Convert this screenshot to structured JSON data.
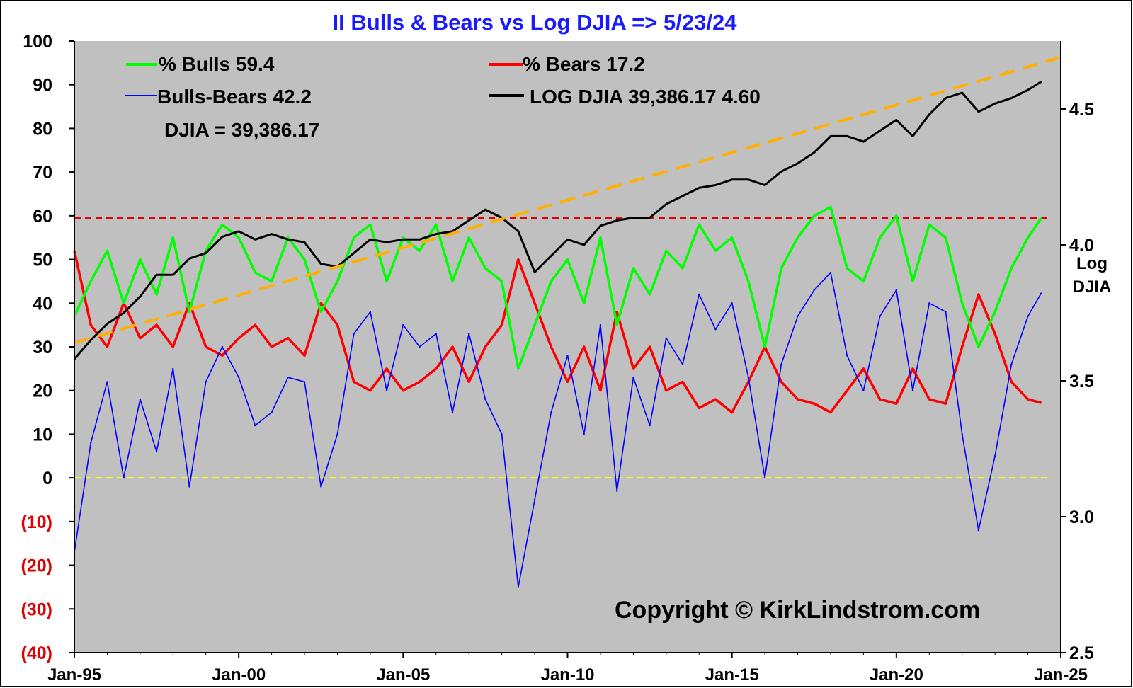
{
  "chart_data": {
    "type": "line",
    "title": "II Bulls & Bears vs Log DJIA =>  5/23/24",
    "colors": {
      "bulls": "#00ff00",
      "bears": "#ff0000",
      "spread": "#0000ff",
      "log_djia": "#000000",
      "trend": "#ffb000",
      "hline_60": "#e00000",
      "hline_0": "#ffff00",
      "plot_bg": "#c0c0c0"
    },
    "y_left": {
      "ylim": [
        -40,
        100
      ],
      "ticks": [
        100,
        90,
        80,
        70,
        60,
        50,
        40,
        30,
        20,
        10,
        0,
        -10,
        -20,
        -30,
        -40
      ],
      "tick_labels": [
        "100",
        "90",
        "80",
        "70",
        "60",
        "50",
        "40",
        "30",
        "20",
        "10",
        "0",
        "(10)",
        "(20)",
        "(30)",
        "(40)"
      ]
    },
    "y_right": {
      "label_line1": "Log",
      "label_line2": "DJIA",
      "ylim": [
        2.5,
        4.75
      ],
      "ticks": [
        4.5,
        4.0,
        3.5,
        3.0,
        2.5
      ],
      "tick_labels": [
        "4.5",
        "4.0",
        "3.5",
        "3.0",
        "2.5"
      ]
    },
    "x_axis": {
      "xlim": [
        1995.0,
        2025.0
      ],
      "ticks": [
        1995,
        2000,
        2005,
        2010,
        2015,
        2020,
        2025
      ],
      "tick_labels": [
        "Jan-95",
        "Jan-00",
        "Jan-05",
        "Jan-10",
        "Jan-15",
        "Jan-20",
        "Jan-25"
      ]
    },
    "legend": {
      "bulls": "%   Bulls 59.4",
      "bears": "% Bears 17.2",
      "spread": "Bulls-Bears 42.2",
      "log_djia": "LOG DJIA  39,386.17  4.60",
      "djia_text": "DJIA =   39,386.17"
    },
    "reference_lines": [
      {
        "name": "bulls 60 line",
        "y": 59.5,
        "style": "dashed"
      },
      {
        "name": "zero line",
        "y": 0,
        "style": "dashed"
      }
    ],
    "trend_line": {
      "x": [
        1995.0,
        2025.0
      ],
      "y_log": [
        3.64,
        4.69
      ]
    },
    "series": [
      {
        "name": "% Bulls",
        "x": [
          1995.0,
          1995.5,
          1996.0,
          1996.5,
          1997.0,
          1997.5,
          1998.0,
          1998.5,
          1999.0,
          1999.5,
          2000.0,
          2000.5,
          2001.0,
          2001.5,
          2002.0,
          2002.5,
          2003.0,
          2003.5,
          2004.0,
          2004.5,
          2005.0,
          2005.5,
          2006.0,
          2006.5,
          2007.0,
          2007.5,
          2008.0,
          2008.5,
          2009.0,
          2009.5,
          2010.0,
          2010.5,
          2011.0,
          2011.5,
          2012.0,
          2012.5,
          2013.0,
          2013.5,
          2014.0,
          2014.5,
          2015.0,
          2015.5,
          2016.0,
          2016.5,
          2017.0,
          2017.5,
          2018.0,
          2018.5,
          2019.0,
          2019.5,
          2020.0,
          2020.5,
          2021.0,
          2021.5,
          2022.0,
          2022.5,
          2023.0,
          2023.5,
          2024.0,
          2024.4
        ],
        "values": [
          37,
          45,
          52,
          40,
          50,
          42,
          55,
          38,
          52,
          58,
          55,
          47,
          45,
          55,
          50,
          38,
          45,
          55,
          58,
          45,
          55,
          52,
          58,
          45,
          55,
          48,
          45,
          25,
          35,
          45,
          50,
          40,
          55,
          35,
          48,
          42,
          52,
          48,
          58,
          52,
          55,
          45,
          30,
          48,
          55,
          60,
          62,
          48,
          45,
          55,
          60,
          45,
          58,
          55,
          40,
          30,
          38,
          48,
          55,
          59.4
        ]
      },
      {
        "name": "% Bears",
        "x": [
          1995.0,
          1995.5,
          1996.0,
          1996.5,
          1997.0,
          1997.5,
          1998.0,
          1998.5,
          1999.0,
          1999.5,
          2000.0,
          2000.5,
          2001.0,
          2001.5,
          2002.0,
          2002.5,
          2003.0,
          2003.5,
          2004.0,
          2004.5,
          2005.0,
          2005.5,
          2006.0,
          2006.5,
          2007.0,
          2007.5,
          2008.0,
          2008.5,
          2009.0,
          2009.5,
          2010.0,
          2010.5,
          2011.0,
          2011.5,
          2012.0,
          2012.5,
          2013.0,
          2013.5,
          2014.0,
          2014.5,
          2015.0,
          2015.5,
          2016.0,
          2016.5,
          2017.0,
          2017.5,
          2018.0,
          2018.5,
          2019.0,
          2019.5,
          2020.0,
          2020.5,
          2021.0,
          2021.5,
          2022.0,
          2022.5,
          2023.0,
          2023.5,
          2024.0,
          2024.4
        ],
        "values": [
          52,
          35,
          30,
          40,
          32,
          35,
          30,
          40,
          30,
          28,
          32,
          35,
          30,
          32,
          28,
          40,
          35,
          22,
          20,
          25,
          20,
          22,
          25,
          30,
          22,
          30,
          35,
          50,
          40,
          30,
          22,
          30,
          20,
          38,
          25,
          30,
          20,
          22,
          16,
          18,
          15,
          22,
          30,
          22,
          18,
          17,
          15,
          20,
          25,
          18,
          17,
          25,
          18,
          17,
          30,
          42,
          33,
          22,
          18,
          17.2
        ]
      },
      {
        "name": "Bulls-Bears",
        "x": [
          1995.0,
          1995.5,
          1996.0,
          1996.5,
          1997.0,
          1997.5,
          1998.0,
          1998.5,
          1999.0,
          1999.5,
          2000.0,
          2000.5,
          2001.0,
          2001.5,
          2002.0,
          2002.5,
          2003.0,
          2003.5,
          2004.0,
          2004.5,
          2005.0,
          2005.5,
          2006.0,
          2006.5,
          2007.0,
          2007.5,
          2008.0,
          2008.5,
          2009.0,
          2009.5,
          2010.0,
          2010.5,
          2011.0,
          2011.5,
          2012.0,
          2012.5,
          2013.0,
          2013.5,
          2014.0,
          2014.5,
          2015.0,
          2015.5,
          2016.0,
          2016.5,
          2017.0,
          2017.5,
          2018.0,
          2018.5,
          2019.0,
          2019.5,
          2020.0,
          2020.5,
          2021.0,
          2021.5,
          2022.0,
          2022.5,
          2023.0,
          2023.5,
          2024.0,
          2024.4
        ],
        "values": [
          -17,
          8,
          22,
          0,
          18,
          6,
          25,
          -2,
          22,
          30,
          23,
          12,
          15,
          23,
          22,
          -2,
          10,
          33,
          38,
          20,
          35,
          30,
          33,
          15,
          33,
          18,
          10,
          -25,
          -5,
          15,
          28,
          10,
          35,
          -3,
          23,
          12,
          32,
          26,
          42,
          34,
          40,
          23,
          0,
          26,
          37,
          43,
          47,
          28,
          20,
          37,
          43,
          20,
          40,
          38,
          10,
          -12,
          5,
          26,
          37,
          42.2
        ]
      },
      {
        "name": "LOG DJIA",
        "x": [
          1995.0,
          1995.5,
          1996.0,
          1996.5,
          1997.0,
          1997.5,
          1998.0,
          1998.5,
          1999.0,
          1999.5,
          2000.0,
          2000.5,
          2001.0,
          2001.5,
          2002.0,
          2002.5,
          2003.0,
          2003.5,
          2004.0,
          2004.5,
          2005.0,
          2005.5,
          2006.0,
          2006.5,
          2007.0,
          2007.5,
          2008.0,
          2008.5,
          2009.0,
          2009.5,
          2010.0,
          2010.5,
          2011.0,
          2011.5,
          2012.0,
          2012.5,
          2013.0,
          2013.5,
          2014.0,
          2014.5,
          2015.0,
          2015.5,
          2016.0,
          2016.5,
          2017.0,
          2017.5,
          2018.0,
          2018.5,
          2019.0,
          2019.5,
          2020.0,
          2020.5,
          2021.0,
          2021.5,
          2022.0,
          2022.5,
          2023.0,
          2023.5,
          2024.0,
          2024.4
        ],
        "y_log": [
          3.58,
          3.65,
          3.71,
          3.75,
          3.81,
          3.89,
          3.89,
          3.95,
          3.97,
          4.03,
          4.05,
          4.02,
          4.04,
          4.02,
          4.01,
          3.93,
          3.92,
          3.97,
          4.02,
          4.01,
          4.02,
          4.02,
          4.04,
          4.05,
          4.09,
          4.13,
          4.1,
          4.05,
          3.9,
          3.96,
          4.02,
          4.0,
          4.07,
          4.09,
          4.1,
          4.1,
          4.15,
          4.18,
          4.21,
          4.22,
          4.24,
          4.24,
          4.22,
          4.27,
          4.3,
          4.34,
          4.4,
          4.4,
          4.38,
          4.42,
          4.46,
          4.4,
          4.48,
          4.54,
          4.56,
          4.49,
          4.52,
          4.54,
          4.57,
          4.6
        ]
      }
    ]
  },
  "footer": {
    "copyright": "Copyright ©  KirkLindstrom.com"
  }
}
